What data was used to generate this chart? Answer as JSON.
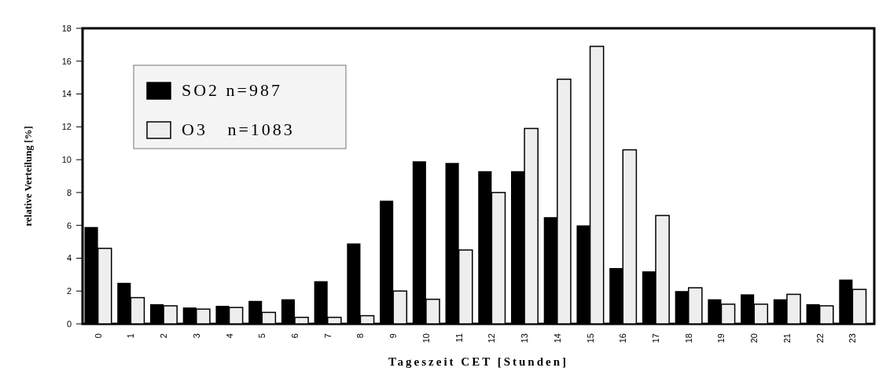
{
  "chart_data": {
    "type": "bar",
    "xlabel": "Tageszeit CET [Stunden]",
    "ylabel": "relative Verteilung [%]",
    "categories": [
      "0",
      "1",
      "2",
      "3",
      "4",
      "5",
      "6",
      "7",
      "8",
      "9",
      "10",
      "11",
      "12",
      "13",
      "14",
      "15",
      "16",
      "17",
      "18",
      "19",
      "20",
      "21",
      "22",
      "23"
    ],
    "series": [
      {
        "name": "SO2 n=987",
        "color": "#000000",
        "values": [
          5.9,
          2.5,
          1.2,
          1.0,
          1.1,
          1.4,
          1.5,
          2.6,
          4.9,
          7.5,
          9.9,
          9.8,
          9.3,
          9.3,
          6.5,
          6.0,
          3.4,
          3.2,
          2.0,
          1.5,
          1.8,
          1.5,
          1.2,
          2.7
        ]
      },
      {
        "name": "O3   n=1083",
        "color": "#eeeeee",
        "values": [
          4.6,
          1.6,
          1.1,
          0.9,
          1.0,
          0.7,
          0.4,
          0.4,
          0.5,
          2.0,
          1.5,
          4.5,
          8.0,
          11.9,
          14.9,
          16.9,
          10.6,
          6.6,
          2.2,
          1.2,
          1.2,
          1.8,
          1.1,
          2.1
        ]
      }
    ],
    "ylim": [
      0,
      18
    ],
    "yticks": [
      0,
      2,
      4,
      6,
      8,
      10,
      12,
      14,
      16,
      18
    ],
    "grid": false,
    "legend": "top left"
  }
}
